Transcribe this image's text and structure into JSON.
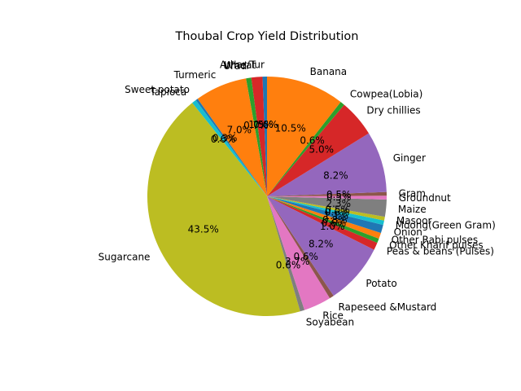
{
  "chart_data": {
    "type": "pie",
    "title": "Thoubal Crop Yield Distribution",
    "start_angle": 90,
    "direction": "counterclockwise",
    "pct_format": "1 decimal with %",
    "slices": [
      {
        "label": "Arhar/Tur",
        "value": 0.6,
        "color": "#1f77b4"
      },
      {
        "label": "Wheat",
        "value": 1.5,
        "color": "#d62728"
      },
      {
        "label": "Urad",
        "value": 0.7,
        "color": "#2ca02c"
      },
      {
        "label": "Turmeric",
        "value": 7.0,
        "color": "#ff7f0e"
      },
      {
        "label": "Sweet potato",
        "value": 0.3,
        "color": "#1f77b4"
      },
      {
        "label": "Tapioca",
        "value": 0.6,
        "color": "#17becf"
      },
      {
        "label": "Sugarcane",
        "value": 43.5,
        "color": "#bcbd22"
      },
      {
        "label": "Soyabean",
        "value": 0.6,
        "color": "#7f7f7f"
      },
      {
        "label": "Rice",
        "value": 3.7,
        "color": "#e377c2"
      },
      {
        "label": "Rapeseed &Mustard",
        "value": 0.6,
        "color": "#8c564b"
      },
      {
        "label": "Potato",
        "value": 8.2,
        "color": "#9467bd"
      },
      {
        "label": "Peas & beans (Pulses)",
        "value": 1.0,
        "color": "#d62728"
      },
      {
        "label": "Other Kharif pulses",
        "value": 0.6,
        "color": "#2ca02c"
      },
      {
        "label": "Other Rabi pulses",
        "value": 0.8,
        "color": "#ff7f0e"
      },
      {
        "label": "Onion",
        "value": 1.1,
        "color": "#1f77b4"
      },
      {
        "label": "Moong(Green Gram)",
        "value": 0.6,
        "color": "#17becf"
      },
      {
        "label": "Masoor",
        "value": 0.5,
        "color": "#bcbd22"
      },
      {
        "label": "Maize",
        "value": 2.3,
        "color": "#7f7f7f"
      },
      {
        "label": "Groundnut",
        "value": 0.5,
        "color": "#e377c2"
      },
      {
        "label": "Gram",
        "value": 0.5,
        "color": "#8c564b"
      },
      {
        "label": "Ginger",
        "value": 8.2,
        "color": "#9467bd"
      },
      {
        "label": "Dry chillies",
        "value": 5.0,
        "color": "#d62728"
      },
      {
        "label": "Cowpea(Lobia)",
        "value": 0.6,
        "color": "#2ca02c"
      },
      {
        "label": "Banana",
        "value": 10.5,
        "color": "#ff7f0e"
      }
    ]
  }
}
